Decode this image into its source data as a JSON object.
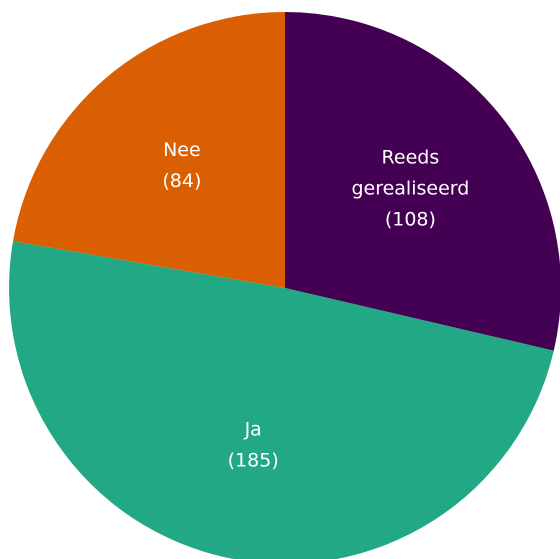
{
  "chart_data": {
    "type": "pie",
    "title": "",
    "legend": "none",
    "start": "top",
    "direction": "clockwise",
    "slices": [
      {
        "label_lines": [
          "Reeds",
          "gerealiseerd"
        ],
        "value": 108,
        "value_text": "(108)",
        "color": "#440154"
      },
      {
        "label_lines": [
          "Ja"
        ],
        "value": 185,
        "value_text": "(185)",
        "color": "#22a884"
      },
      {
        "label_lines": [
          "Nee"
        ],
        "value": 84,
        "value_text": "(84)",
        "color": "#d95f02"
      }
    ]
  }
}
